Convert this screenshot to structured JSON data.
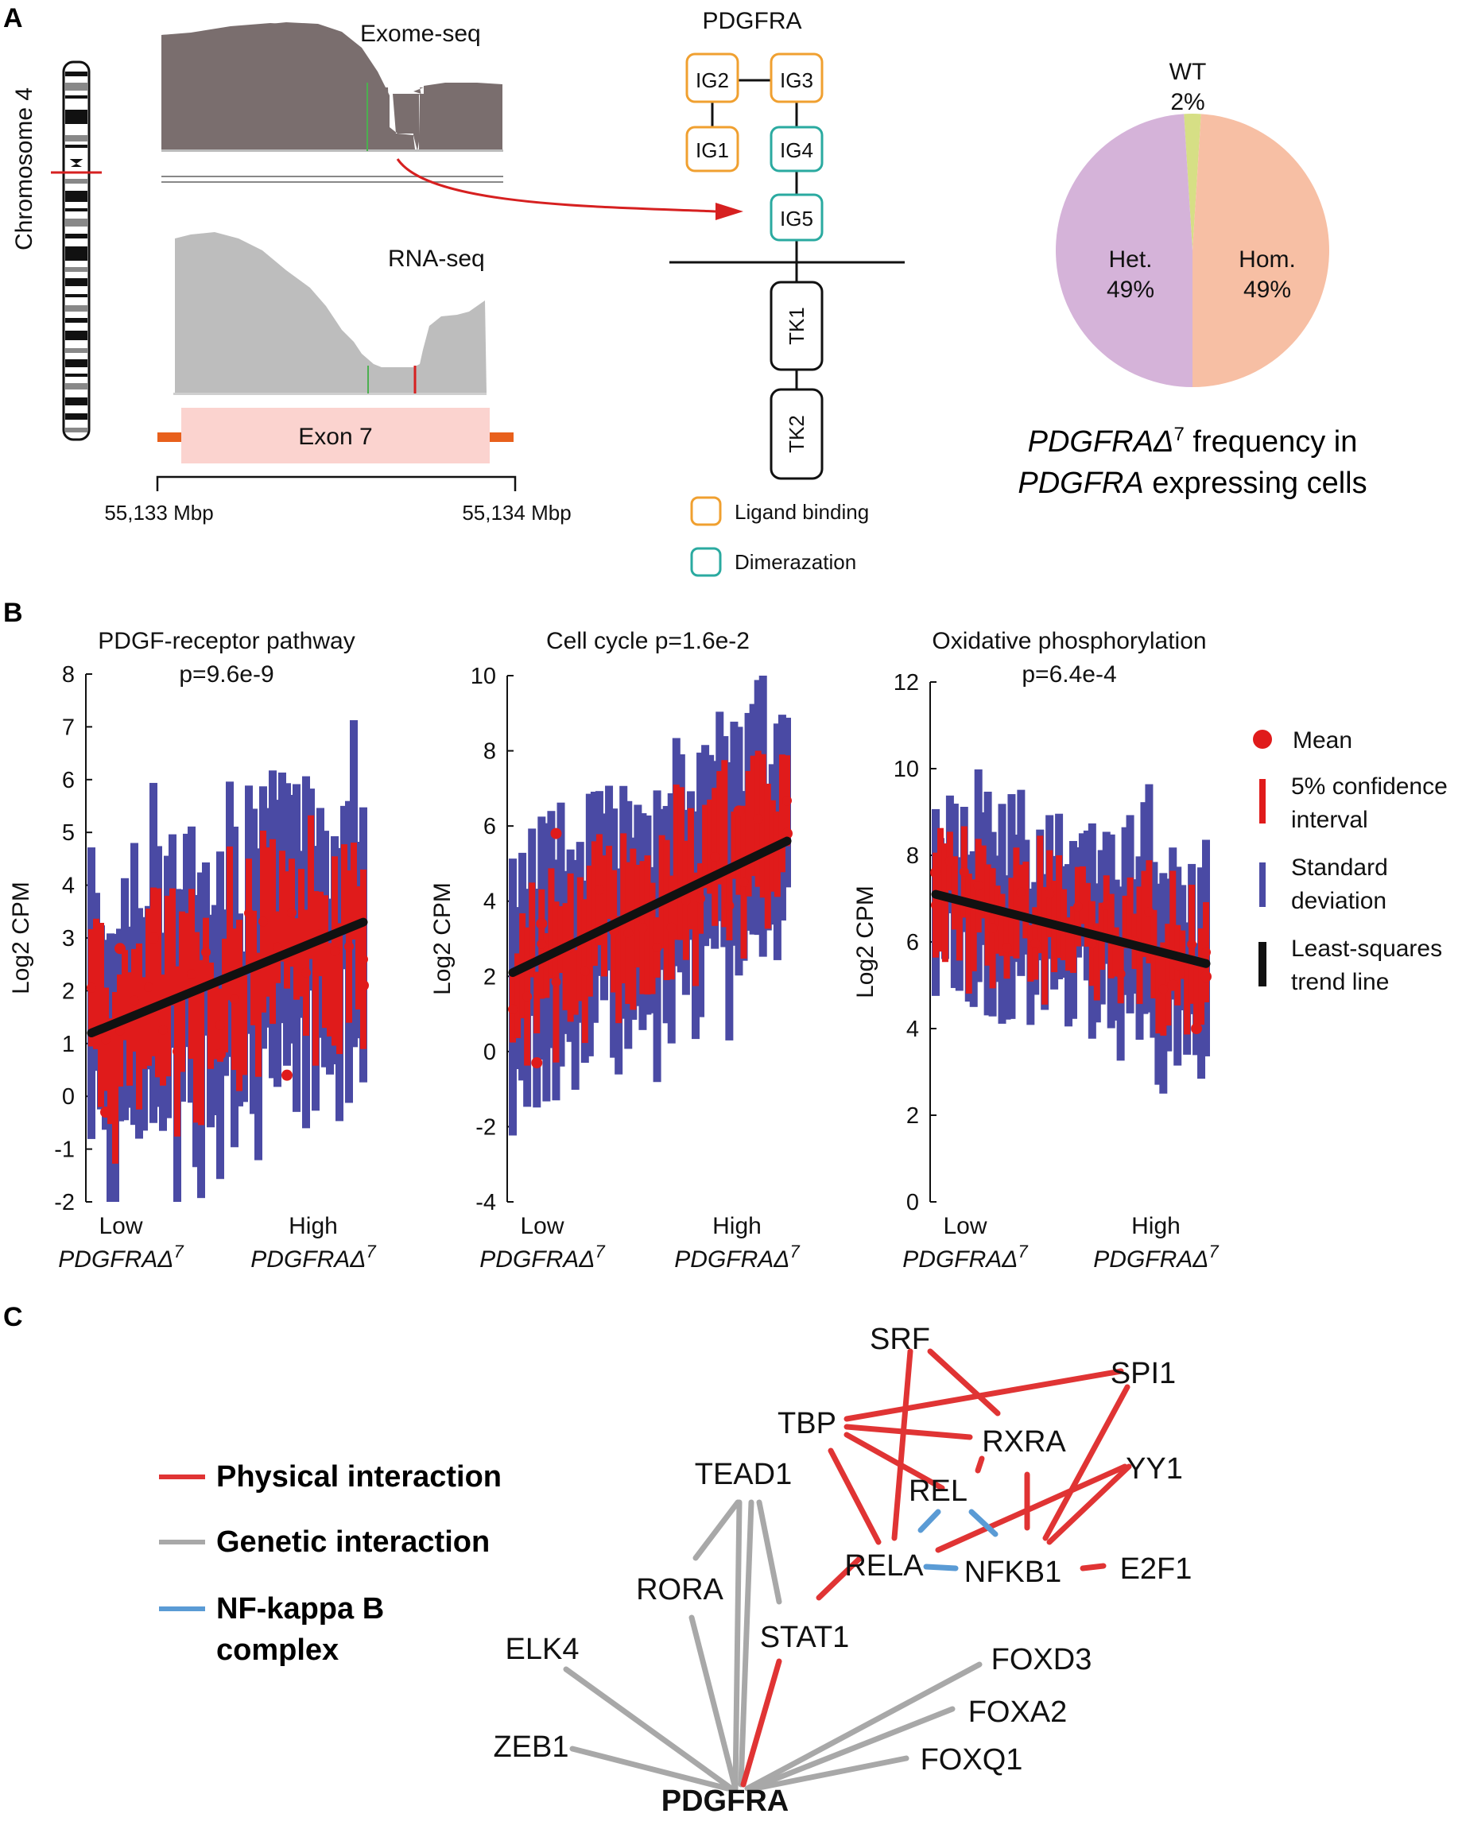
{
  "panels": {
    "a": {
      "letter": "A",
      "chromosome_label": "Chromosome 4",
      "exome_label": "Exome-seq",
      "rna_label": "RNA-seq",
      "exon_label": "Exon 7",
      "scale_left": "55,133 Mbp",
      "scale_right": "55,134 Mbp",
      "protein": {
        "title": "PDGFRA",
        "domains": [
          "IG2",
          "IG3",
          "IG1",
          "IG4",
          "IG5",
          "TK1",
          "TK2"
        ],
        "legend": [
          {
            "label": "Ligand binding",
            "color": "#f0a030"
          },
          {
            "label": "Dimerazation",
            "color": "#2aaaa0"
          }
        ]
      },
      "pie": {
        "slices": [
          {
            "name": "WT",
            "label": "WT",
            "percent_label": "2%",
            "value": 2,
            "color": "#d6df85"
          },
          {
            "name": "Hom.",
            "label": "Hom.",
            "percent_label": "49%",
            "value": 49,
            "color": "#f7bfa4"
          },
          {
            "name": "Het.",
            "label": "Het.",
            "percent_label": "49%",
            "value": 49,
            "color": "#d5b3d9"
          }
        ],
        "caption_line1_gene": "PDGFRA",
        "caption_line1_sup": "7",
        "caption_line1_rest": " frequency in",
        "caption_line2_gene": "PDGFRA",
        "caption_line2_rest": " expressing cells"
      }
    },
    "b": {
      "letter": "B",
      "ylabel": "Log2 CPM",
      "x_low": "Low",
      "x_high": "High",
      "x_gene": "PDGFRAΔ",
      "x_sup": "7",
      "legend": [
        {
          "key": "mean",
          "line1": "Mean",
          "line2": ""
        },
        {
          "key": "ci",
          "line1": "5% confidence",
          "line2": "interval"
        },
        {
          "key": "sd",
          "line1": "Standard",
          "line2": "deviation"
        },
        {
          "key": "trend",
          "line1": "Least-squares",
          "line2": "trend line"
        }
      ]
    },
    "c": {
      "letter": "C",
      "legend": [
        {
          "line1": "Physical interaction",
          "line2": "",
          "color": "#e03434"
        },
        {
          "line1": "Genetic interaction",
          "line2": "",
          "color": "#a8a8a8"
        },
        {
          "line1": "NF-kappa B",
          "line2": "complex",
          "color": "#5a9bd5"
        }
      ],
      "nodes": [
        "SRF",
        "SPI1",
        "TBP",
        "RXRA",
        "TEAD1",
        "YY1",
        "REL",
        "RELA",
        "NFKB1",
        "E2F1",
        "RORA",
        "STAT1",
        "ELK4",
        "FOXD3",
        "FOXA2",
        "ZEB1",
        "FOXQ1",
        "PDGFRA"
      ]
    }
  },
  "chart_data": [
    {
      "type": "scatter",
      "title": "PDGF-receptor pathway",
      "subtitle": "p=9.6e-9",
      "ylabel": "Log2 CPM",
      "ylim": [
        -2,
        8
      ],
      "yticks": [
        "8",
        "7",
        "6",
        "5",
        "4",
        "3",
        "2",
        "1",
        "0",
        "-1",
        "-2"
      ],
      "trend": {
        "start": 1.2,
        "end": 3.3
      },
      "noise": {
        "mean_amp": 1.1,
        "sd_half": 2.6
      },
      "outliers": [
        [
          3,
          -0.3
        ],
        [
          6,
          2.8
        ],
        [
          13,
          3.0
        ],
        [
          27,
          0.8
        ],
        [
          41,
          0.4
        ],
        [
          57,
          2.1
        ]
      ]
    },
    {
      "type": "scatter",
      "title": "Cell cycle p=1.6e-2",
      "subtitle": "",
      "ylabel": "Log2 CPM",
      "ylim": [
        -4,
        10
      ],
      "yticks": [
        "10",
        "8",
        "6",
        "4",
        "2",
        "0",
        "-2",
        "-4"
      ],
      "trend": {
        "start": 2.1,
        "end": 5.6
      },
      "noise": {
        "mean_amp": 1.3,
        "sd_half": 3.2
      },
      "outliers": [
        [
          5,
          -0.3
        ],
        [
          6,
          3.4
        ],
        [
          9,
          5.8
        ],
        [
          47,
          6.4
        ],
        [
          57,
          5.8
        ]
      ]
    },
    {
      "type": "scatter",
      "title": "Oxidative phosphorylation",
      "subtitle": "p=6.4e-4",
      "ylabel": "Log2 CPM",
      "ylim": [
        0,
        12
      ],
      "yticks": [
        "12",
        "10",
        "8",
        "6",
        "4",
        "2",
        "0"
      ],
      "trend": {
        "start": 7.1,
        "end": 5.5
      },
      "noise": {
        "mean_amp": 0.9,
        "sd_half": 2.1
      },
      "outliers": [
        [
          0,
          7.6
        ],
        [
          50,
          5.0
        ],
        [
          55,
          4.0
        ],
        [
          57,
          5.2
        ]
      ]
    }
  ]
}
